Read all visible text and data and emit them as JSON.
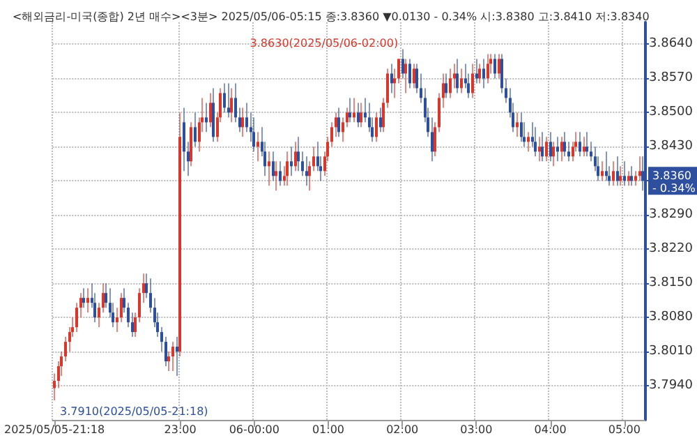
{
  "chart_data": {
    "type": "candlestick",
    "title": "<해외금리-미국(종합) 2년 매수><3분> 2025/05/06-05:15 종:3.8360 ▼0.0130 - 0.34% 시:3.8380 고:3.8410 저:3.8340",
    "categories": [
      "2025/05/05-21:18",
      null,
      null,
      null,
      null,
      null,
      null,
      null,
      null,
      null,
      null,
      null,
      null,
      null,
      null,
      null,
      null,
      null,
      null,
      null,
      null,
      null,
      null,
      null,
      null,
      null,
      null,
      null,
      null,
      null,
      null,
      null,
      null,
      null,
      "23:00",
      null,
      null,
      null,
      null,
      null,
      null,
      null,
      null,
      null,
      null,
      null,
      null,
      null,
      null,
      null,
      null,
      null,
      null,
      null,
      "06-00:00",
      null,
      null,
      null,
      null,
      null,
      null,
      null,
      null,
      null,
      null,
      null,
      null,
      null,
      null,
      null,
      null,
      null,
      null,
      null,
      "01:00",
      null,
      null,
      null,
      null,
      null,
      null,
      null,
      null,
      null,
      null,
      null,
      null,
      null,
      null,
      null,
      null,
      null,
      null,
      null,
      "02:00",
      null,
      null,
      null,
      null,
      null,
      null,
      null,
      null,
      null,
      null,
      null,
      null,
      null,
      null,
      null,
      null,
      null,
      null,
      null,
      "03:00",
      null,
      null,
      null,
      null,
      null,
      null,
      null,
      null,
      null,
      null,
      null,
      null,
      null,
      null,
      null,
      null,
      null,
      null,
      null,
      "04:00",
      null,
      null,
      null,
      null,
      null,
      null,
      null,
      null,
      null,
      null,
      null,
      null,
      null,
      null,
      null,
      null,
      null,
      null,
      null,
      "05:00",
      null,
      null,
      null,
      null,
      null
    ],
    "ohlc": [
      [
        3.7935,
        3.7965,
        3.791,
        3.795
      ],
      [
        3.795,
        3.799,
        3.7935,
        3.798
      ],
      [
        3.798,
        3.801,
        3.796,
        3.8
      ],
      [
        3.8,
        3.804,
        3.799,
        3.803
      ],
      [
        3.803,
        3.806,
        3.801,
        3.805
      ],
      [
        3.805,
        3.808,
        3.804,
        3.806
      ],
      [
        3.806,
        3.811,
        3.805,
        3.81
      ],
      [
        3.81,
        3.813,
        3.808,
        3.812
      ],
      [
        3.812,
        3.814,
        3.81,
        3.811
      ],
      [
        3.811,
        3.814,
        3.809,
        3.812
      ],
      [
        3.812,
        3.815,
        3.81,
        3.811
      ],
      [
        3.811,
        3.813,
        3.807,
        3.808
      ],
      [
        3.808,
        3.811,
        3.806,
        3.81
      ],
      [
        3.81,
        3.815,
        3.809,
        3.813
      ],
      [
        3.813,
        3.815,
        3.81,
        3.811
      ],
      [
        3.811,
        3.814,
        3.808,
        3.809
      ],
      [
        3.809,
        3.811,
        3.806,
        3.807
      ],
      [
        3.807,
        3.81,
        3.805,
        3.808
      ],
      [
        3.808,
        3.813,
        3.807,
        3.812
      ],
      [
        3.812,
        3.814,
        3.809,
        3.81
      ],
      [
        3.81,
        3.811,
        3.806,
        3.807
      ],
      [
        3.807,
        3.809,
        3.804,
        3.805
      ],
      [
        3.805,
        3.809,
        3.804,
        3.808
      ],
      [
        3.808,
        3.814,
        3.807,
        3.813
      ],
      [
        3.813,
        3.817,
        3.811,
        3.815
      ],
      [
        3.815,
        3.817,
        3.812,
        3.813
      ],
      [
        3.813,
        3.816,
        3.809,
        3.81
      ],
      [
        3.81,
        3.812,
        3.806,
        3.807
      ],
      [
        3.807,
        3.809,
        3.804,
        3.805
      ],
      [
        3.805,
        3.806,
        3.801,
        3.803
      ],
      [
        3.803,
        3.804,
        3.798,
        3.799
      ],
      [
        3.799,
        3.801,
        3.797,
        3.8
      ],
      [
        3.8,
        3.803,
        3.797,
        3.802
      ],
      [
        3.802,
        3.804,
        3.796,
        3.801
      ],
      [
        3.801,
        3.85,
        3.8,
        3.845
      ],
      [
        3.848,
        3.851,
        3.838,
        3.842
      ],
      [
        3.842,
        3.844,
        3.837,
        3.84
      ],
      [
        3.84,
        3.848,
        3.839,
        3.847
      ],
      [
        3.847,
        3.85,
        3.843,
        3.844
      ],
      [
        3.844,
        3.849,
        3.842,
        3.848
      ],
      [
        3.848,
        3.853,
        3.846,
        3.849
      ],
      [
        3.849,
        3.852,
        3.846,
        3.848
      ],
      [
        3.848,
        3.854,
        3.847,
        3.852
      ],
      [
        3.852,
        3.855,
        3.844,
        3.845
      ],
      [
        3.845,
        3.85,
        3.844,
        3.849
      ],
      [
        3.849,
        3.855,
        3.848,
        3.854
      ],
      [
        3.854,
        3.856,
        3.85,
        3.851
      ],
      [
        3.851,
        3.856,
        3.849,
        3.85
      ],
      [
        3.85,
        3.855,
        3.848,
        3.853
      ],
      [
        3.853,
        3.856,
        3.848,
        3.849
      ],
      [
        3.849,
        3.851,
        3.846,
        3.847
      ],
      [
        3.847,
        3.851,
        3.845,
        3.849
      ],
      [
        3.849,
        3.852,
        3.846,
        3.847
      ],
      [
        3.847,
        3.85,
        3.844,
        3.846
      ],
      [
        3.846,
        3.849,
        3.842,
        3.843
      ],
      [
        3.843,
        3.846,
        3.84,
        3.844
      ],
      [
        3.844,
        3.847,
        3.841,
        3.842
      ],
      [
        3.842,
        3.844,
        3.837,
        3.839
      ],
      [
        3.839,
        3.842,
        3.835,
        3.84
      ],
      [
        3.84,
        3.842,
        3.836,
        3.837
      ],
      [
        3.837,
        3.84,
        3.834,
        3.838
      ],
      [
        3.838,
        3.84,
        3.835,
        3.836
      ],
      [
        3.836,
        3.839,
        3.835,
        3.837
      ],
      [
        3.837,
        3.842,
        3.835,
        3.84
      ],
      [
        3.84,
        3.843,
        3.837,
        3.839
      ],
      [
        3.839,
        3.844,
        3.838,
        3.842
      ],
      [
        3.842,
        3.845,
        3.838,
        3.84
      ],
      [
        3.84,
        3.842,
        3.837,
        3.838
      ],
      [
        3.838,
        3.841,
        3.835,
        3.837
      ],
      [
        3.837,
        3.84,
        3.834,
        3.839
      ],
      [
        3.839,
        3.843,
        3.838,
        3.841
      ],
      [
        3.841,
        3.844,
        3.838,
        3.839
      ],
      [
        3.839,
        3.841,
        3.836,
        3.838
      ],
      [
        3.838,
        3.842,
        3.837,
        3.841
      ],
      [
        3.841,
        3.845,
        3.84,
        3.844
      ],
      [
        3.844,
        3.848,
        3.843,
        3.847
      ],
      [
        3.847,
        3.85,
        3.845,
        3.849
      ],
      [
        3.849,
        3.851,
        3.845,
        3.846
      ],
      [
        3.846,
        3.849,
        3.844,
        3.848
      ],
      [
        3.848,
        3.851,
        3.847,
        3.85
      ],
      [
        3.85,
        3.853,
        3.848,
        3.849
      ],
      [
        3.849,
        3.853,
        3.848,
        3.85
      ],
      [
        3.85,
        3.852,
        3.847,
        3.848
      ],
      [
        3.848,
        3.852,
        3.847,
        3.85
      ],
      [
        3.85,
        3.853,
        3.848,
        3.849
      ],
      [
        3.849,
        3.852,
        3.846,
        3.847
      ],
      [
        3.847,
        3.849,
        3.844,
        3.845
      ],
      [
        3.845,
        3.85,
        3.844,
        3.849
      ],
      [
        3.849,
        3.851,
        3.846,
        3.847
      ],
      [
        3.847,
        3.853,
        3.846,
        3.852
      ],
      [
        3.852,
        3.859,
        3.851,
        3.858
      ],
      [
        3.858,
        3.86,
        3.854,
        3.856
      ],
      [
        3.856,
        3.859,
        3.853,
        3.857
      ],
      [
        3.857,
        3.861,
        3.856,
        3.861
      ],
      [
        3.861,
        3.863,
        3.857,
        3.858
      ],
      [
        3.858,
        3.861,
        3.854,
        3.86
      ],
      [
        3.86,
        3.861,
        3.855,
        3.856
      ],
      [
        3.856,
        3.86,
        3.855,
        3.859
      ],
      [
        3.859,
        3.86,
        3.854,
        3.855
      ],
      [
        3.855,
        3.858,
        3.852,
        3.853
      ],
      [
        3.853,
        3.855,
        3.848,
        3.849
      ],
      [
        3.849,
        3.851,
        3.845,
        3.846
      ],
      [
        3.846,
        3.849,
        3.84,
        3.842
      ],
      [
        3.842,
        3.848,
        3.841,
        3.847
      ],
      [
        3.847,
        3.854,
        3.846,
        3.853
      ],
      [
        3.853,
        3.858,
        3.851,
        3.856
      ],
      [
        3.856,
        3.858,
        3.853,
        3.854
      ],
      [
        3.854,
        3.859,
        3.853,
        3.857
      ],
      [
        3.857,
        3.86,
        3.855,
        3.858
      ],
      [
        3.858,
        3.861,
        3.854,
        3.855
      ],
      [
        3.855,
        3.859,
        3.854,
        3.857
      ],
      [
        3.857,
        3.86,
        3.855,
        3.856
      ],
      [
        3.856,
        3.858,
        3.853,
        3.854
      ],
      [
        3.854,
        3.86,
        3.853,
        3.858
      ],
      [
        3.858,
        3.861,
        3.856,
        3.857
      ],
      [
        3.857,
        3.86,
        3.856,
        3.859
      ],
      [
        3.859,
        3.861,
        3.855,
        3.857
      ],
      [
        3.857,
        3.862,
        3.856,
        3.86
      ],
      [
        3.86,
        3.862,
        3.858,
        3.861
      ],
      [
        3.861,
        3.862,
        3.857,
        3.858
      ],
      [
        3.858,
        3.862,
        3.857,
        3.861
      ],
      [
        3.861,
        3.862,
        3.854,
        3.855
      ],
      [
        3.855,
        3.857,
        3.852,
        3.853
      ],
      [
        3.853,
        3.855,
        3.849,
        3.85
      ],
      [
        3.85,
        3.852,
        3.846,
        3.847
      ],
      [
        3.847,
        3.85,
        3.845,
        3.848
      ],
      [
        3.848,
        3.85,
        3.844,
        3.845
      ],
      [
        3.845,
        3.848,
        3.843,
        3.844
      ],
      [
        3.844,
        3.846,
        3.842,
        3.845
      ],
      [
        3.845,
        3.848,
        3.843,
        3.844
      ],
      [
        3.844,
        3.847,
        3.841,
        3.842
      ],
      [
        3.842,
        3.845,
        3.84,
        3.843
      ],
      [
        3.843,
        3.846,
        3.84,
        3.841
      ],
      [
        3.841,
        3.845,
        3.84,
        3.844
      ],
      [
        3.844,
        3.846,
        3.84,
        3.841
      ],
      [
        3.841,
        3.844,
        3.839,
        3.843
      ],
      [
        3.843,
        3.845,
        3.84,
        3.842
      ],
      [
        3.842,
        3.845,
        3.84,
        3.844
      ],
      [
        3.844,
        3.846,
        3.841,
        3.842
      ],
      [
        3.842,
        3.844,
        3.84,
        3.841
      ],
      [
        3.841,
        3.844,
        3.84,
        3.843
      ],
      [
        3.843,
        3.846,
        3.842,
        3.844
      ],
      [
        3.844,
        3.846,
        3.841,
        3.842
      ],
      [
        3.842,
        3.845,
        3.841,
        3.843
      ],
      [
        3.843,
        3.846,
        3.841,
        3.842
      ],
      [
        3.842,
        3.844,
        3.84,
        3.841
      ],
      [
        3.841,
        3.843,
        3.838,
        3.839
      ],
      [
        3.839,
        3.841,
        3.836,
        3.837
      ],
      [
        3.837,
        3.84,
        3.836,
        3.838
      ],
      [
        3.838,
        3.842,
        3.836,
        3.837
      ],
      [
        3.837,
        3.839,
        3.835,
        3.836
      ],
      [
        3.836,
        3.84,
        3.835,
        3.838
      ],
      [
        3.838,
        3.841,
        3.835,
        3.836
      ],
      [
        3.836,
        3.839,
        3.835,
        3.837
      ],
      [
        3.837,
        3.84,
        3.835,
        3.836
      ],
      [
        3.836,
        3.838,
        3.835,
        3.837
      ],
      [
        3.837,
        3.839,
        3.835,
        3.836
      ],
      [
        3.836,
        3.838,
        3.835,
        3.837
      ],
      [
        3.837,
        3.841,
        3.836,
        3.838
      ],
      [
        3.838,
        3.841,
        3.834,
        3.836
      ]
    ],
    "ylim": [
      3.787,
      3.8685
    ],
    "yticks": [
      {
        "value": 3.794,
        "label": "3.7940"
      },
      {
        "value": 3.801,
        "label": "3.8010"
      },
      {
        "value": 3.808,
        "label": "3.8080"
      },
      {
        "value": 3.815,
        "label": "3.8150"
      },
      {
        "value": 3.822,
        "label": "3.8220"
      },
      {
        "value": 3.829,
        "label": "3.8290"
      },
      {
        "value": 3.836,
        "label": null
      },
      {
        "value": 3.843,
        "label": "3.8430"
      },
      {
        "value": 3.85,
        "label": "3.8500"
      },
      {
        "value": 3.857,
        "label": "3.8570"
      },
      {
        "value": 3.864,
        "label": "3.8640"
      }
    ],
    "grid": true,
    "annotations": [
      "3.8630(2025/05/06-02:00)",
      "3.7910(2025/05/05-21:18)",
      {
        "text": "3.8360\n- 0.34%",
        "y": 3.836
      }
    ]
  }
}
